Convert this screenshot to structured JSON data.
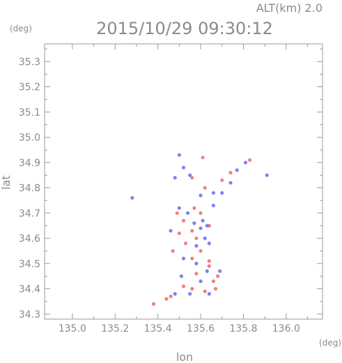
{
  "chart_data": {
    "type": "scatter",
    "title": "2015/10/29 09:30:12",
    "subtitle": "ALT(km) 2.0",
    "xlabel": "lon",
    "ylabel": "lat",
    "x_unit": "(deg)",
    "y_unit": "(deg)",
    "xlim": [
      134.87,
      136.17
    ],
    "ylim": [
      34.28,
      35.37
    ],
    "x_ticks": [
      "135.0",
      "135.2",
      "135.4",
      "135.6",
      "135.8",
      "136.0"
    ],
    "y_ticks": [
      "34.3",
      "34.4",
      "34.5",
      "34.6",
      "34.7",
      "34.8",
      "34.9",
      "35.0",
      "35.1",
      "35.2",
      "35.3"
    ],
    "grid": false,
    "colors": {
      "positive": "#f06a6a",
      "negative": "#6a6af0",
      "axis": "#9a9a9a"
    },
    "series": [
      {
        "color": "positive",
        "points": [
          [
            135.61,
            34.92
          ],
          [
            135.83,
            34.91
          ],
          [
            135.38,
            34.34
          ],
          [
            135.44,
            34.36
          ],
          [
            135.46,
            34.37
          ],
          [
            135.52,
            34.41
          ],
          [
            135.56,
            34.4
          ],
          [
            135.62,
            34.39
          ],
          [
            135.66,
            34.43
          ],
          [
            135.68,
            34.45
          ],
          [
            135.58,
            34.46
          ],
          [
            135.56,
            34.52
          ],
          [
            135.64,
            34.51
          ],
          [
            135.6,
            34.55
          ],
          [
            135.53,
            34.58
          ],
          [
            135.5,
            34.62
          ],
          [
            135.56,
            34.63
          ],
          [
            135.52,
            34.67
          ],
          [
            135.6,
            34.7
          ],
          [
            135.57,
            34.72
          ],
          [
            135.49,
            34.7
          ],
          [
            135.64,
            34.65
          ],
          [
            135.62,
            34.8
          ],
          [
            135.7,
            34.83
          ],
          [
            135.74,
            34.86
          ],
          [
            135.56,
            34.84
          ],
          [
            135.64,
            34.49
          ],
          [
            135.67,
            34.4
          ],
          [
            135.47,
            34.55
          ],
          [
            135.58,
            34.6
          ]
        ]
      },
      {
        "color": "negative",
        "points": [
          [
            135.28,
            34.76
          ],
          [
            135.5,
            34.93
          ],
          [
            135.81,
            34.9
          ],
          [
            135.77,
            34.87
          ],
          [
            135.52,
            34.88
          ],
          [
            135.55,
            34.85
          ],
          [
            135.48,
            34.84
          ],
          [
            135.6,
            34.77
          ],
          [
            135.66,
            34.78
          ],
          [
            135.7,
            34.78
          ],
          [
            135.74,
            34.82
          ],
          [
            135.5,
            34.72
          ],
          [
            135.61,
            34.67
          ],
          [
            135.63,
            34.65
          ],
          [
            135.6,
            34.64
          ],
          [
            135.57,
            34.66
          ],
          [
            135.62,
            34.6
          ],
          [
            135.58,
            34.57
          ],
          [
            135.46,
            34.63
          ],
          [
            135.52,
            34.52
          ],
          [
            135.58,
            34.5
          ],
          [
            135.63,
            34.47
          ],
          [
            135.6,
            34.43
          ],
          [
            135.55,
            34.38
          ],
          [
            135.48,
            34.38
          ],
          [
            135.64,
            34.38
          ],
          [
            135.69,
            34.47
          ],
          [
            135.54,
            34.7
          ],
          [
            135.66,
            34.73
          ],
          [
            135.91,
            34.85
          ],
          [
            135.51,
            34.45
          ],
          [
            135.64,
            34.58
          ]
        ]
      }
    ]
  }
}
